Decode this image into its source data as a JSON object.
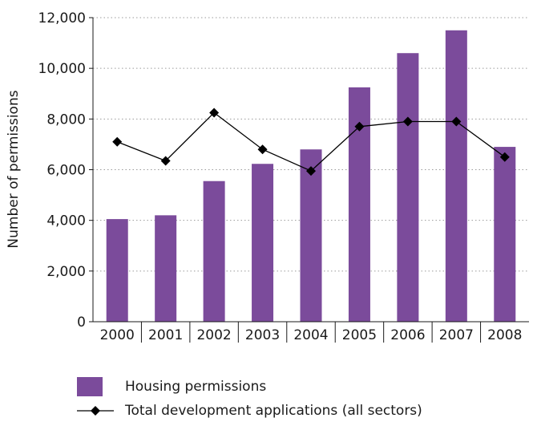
{
  "chart_data": {
    "type": "bar",
    "x": [
      "2000",
      "2001",
      "2002",
      "2003",
      "2004",
      "2005",
      "2006",
      "2007",
      "2008"
    ],
    "ylabel": "Number of permissions",
    "ylim": [
      0,
      12000
    ],
    "yticks": [
      "0",
      "2,000",
      "4,000",
      "6,000",
      "8,000",
      "10,000",
      "12,000"
    ],
    "grid": "horizontal dotted",
    "legend_position": "bottom",
    "series": [
      {
        "name": "Housing permissions",
        "type": "bar",
        "color": "#7b4b9b",
        "values": [
          4050,
          4200,
          5550,
          6230,
          6800,
          9250,
          10600,
          11500,
          6900
        ]
      },
      {
        "name": "Total development applications (all sectors)",
        "type": "line",
        "color": "#000000",
        "marker": "diamond",
        "values": [
          7100,
          6350,
          8250,
          6800,
          5950,
          7700,
          7900,
          7900,
          6500
        ]
      }
    ]
  }
}
